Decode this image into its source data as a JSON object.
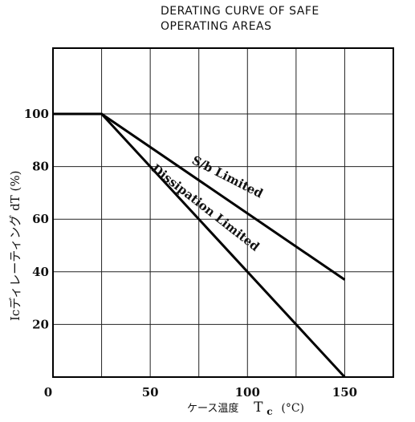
{
  "chart_data": {
    "type": "line",
    "title_lines": [
      "DERATING CURVE OF SAFE",
      "OPERATING AREAS"
    ],
    "xlabel_parts": {
      "jp": "ケース温度",
      "sym": "T",
      "sub": "c",
      "unit": "(°C)"
    },
    "ylabel": "Icディレーティング dT (%)",
    "xlim": [
      0,
      175
    ],
    "ylim": [
      0,
      125
    ],
    "x_ticks": [
      0,
      50,
      100,
      150
    ],
    "y_ticks": [
      20,
      40,
      60,
      80,
      100
    ],
    "x_grid": [
      25,
      50,
      75,
      100,
      125,
      150
    ],
    "y_grid": [
      20,
      40,
      60,
      80,
      100
    ],
    "grid": true,
    "series": [
      {
        "name": "S/b Limited",
        "x": [
          0,
          25,
          150
        ],
        "y": [
          100,
          100,
          37
        ]
      },
      {
        "name": "Dissipation Limited",
        "x": [
          0,
          25,
          150
        ],
        "y": [
          100,
          100,
          0
        ]
      }
    ]
  }
}
